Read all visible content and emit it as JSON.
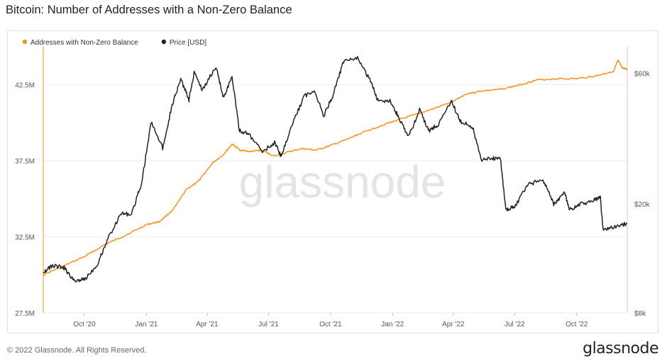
{
  "title": "Bitcoin: Number of Addresses with a Non-Zero Balance",
  "footer": "© 2022 Glassnode. All Rights Reserved.",
  "brand": "glassnode",
  "watermark": "glassnode",
  "colors": {
    "addresses": "#f7931a",
    "price": "#222222",
    "grid": "#ececec",
    "watermark": "#e4e4e4"
  },
  "chart_data": {
    "type": "line",
    "title": "Bitcoin: Number of Addresses with a Non-Zero Balance",
    "legend": [
      "Addresses with Non-Zero Balance",
      "Price [USD]"
    ],
    "x_range": [
      "2020-08-01",
      "2022-12-15"
    ],
    "x_ticks": [
      {
        "label": "Oct '20",
        "date": "2020-10-01"
      },
      {
        "label": "Jan '21",
        "date": "2021-01-01"
      },
      {
        "label": "Apr '21",
        "date": "2021-04-01"
      },
      {
        "label": "Jul '21",
        "date": "2021-07-01"
      },
      {
        "label": "Oct '21",
        "date": "2021-10-01"
      },
      {
        "label": "Jan '22",
        "date": "2022-01-01"
      },
      {
        "label": "Apr '22",
        "date": "2022-04-01"
      },
      {
        "label": "Jul '22",
        "date": "2022-07-01"
      },
      {
        "label": "Oct '22",
        "date": "2022-10-01"
      }
    ],
    "y_left": {
      "ylim": [
        27.5,
        45
      ],
      "ticks": [
        {
          "label": "27.5M",
          "value": 27.5
        },
        {
          "label": "32.5M",
          "value": 32.5
        },
        {
          "label": "37.5M",
          "value": 37.5
        },
        {
          "label": "42.5M",
          "value": 42.5
        }
      ]
    },
    "y_right": {
      "scale": "log",
      "ylim": [
        8000,
        75000
      ],
      "ticks": [
        {
          "label": "$8k",
          "value": 8000
        },
        {
          "label": "$20k",
          "value": 20000
        },
        {
          "label": "$60k",
          "value": 60000
        }
      ]
    },
    "series": [
      {
        "name": "Addresses with Non-Zero Balance",
        "axis": "left",
        "points": [
          [
            "2020-08-01",
            30.0
          ],
          [
            "2020-09-01",
            30.6
          ],
          [
            "2020-10-01",
            31.2
          ],
          [
            "2020-11-01",
            32.0
          ],
          [
            "2020-12-01",
            32.6
          ],
          [
            "2021-01-01",
            33.3
          ],
          [
            "2021-01-20",
            33.5
          ],
          [
            "2021-02-10",
            34.3
          ],
          [
            "2021-03-01",
            35.6
          ],
          [
            "2021-03-20",
            36.2
          ],
          [
            "2021-04-10",
            37.4
          ],
          [
            "2021-04-25",
            37.9
          ],
          [
            "2021-05-08",
            38.6
          ],
          [
            "2021-05-20",
            38.2
          ],
          [
            "2021-06-05",
            38.1
          ],
          [
            "2021-06-20",
            38.2
          ],
          [
            "2021-07-10",
            37.8
          ],
          [
            "2021-08-01",
            38.1
          ],
          [
            "2021-08-20",
            38.3
          ],
          [
            "2021-09-10",
            38.2
          ],
          [
            "2021-10-01",
            38.5
          ],
          [
            "2021-10-25",
            38.9
          ],
          [
            "2021-11-20",
            39.4
          ],
          [
            "2021-12-20",
            39.9
          ],
          [
            "2022-01-10",
            40.2
          ],
          [
            "2022-02-01",
            40.5
          ],
          [
            "2022-03-01",
            40.9
          ],
          [
            "2022-04-01",
            41.4
          ],
          [
            "2022-04-20",
            41.9
          ],
          [
            "2022-05-15",
            42.1
          ],
          [
            "2022-06-10",
            42.2
          ],
          [
            "2022-07-10",
            42.5
          ],
          [
            "2022-08-01",
            42.8
          ],
          [
            "2022-09-01",
            42.9
          ],
          [
            "2022-10-01",
            42.9
          ],
          [
            "2022-11-01",
            43.1
          ],
          [
            "2022-11-25",
            43.4
          ],
          [
            "2022-12-01",
            44.1
          ],
          [
            "2022-12-08",
            43.6
          ],
          [
            "2022-12-15",
            43.5
          ]
        ]
      },
      {
        "name": "Price [USD]",
        "axis": "right",
        "points": [
          [
            "2020-08-01",
            11300
          ],
          [
            "2020-08-15",
            11900
          ],
          [
            "2020-09-01",
            11700
          ],
          [
            "2020-09-15",
            10500
          ],
          [
            "2020-10-01",
            10600
          ],
          [
            "2020-10-20",
            12000
          ],
          [
            "2020-11-05",
            15000
          ],
          [
            "2020-11-25",
            18500
          ],
          [
            "2020-12-10",
            18300
          ],
          [
            "2020-12-25",
            24000
          ],
          [
            "2021-01-08",
            40000
          ],
          [
            "2021-01-25",
            32000
          ],
          [
            "2021-02-08",
            46000
          ],
          [
            "2021-02-21",
            57000
          ],
          [
            "2021-03-05",
            48000
          ],
          [
            "2021-03-13",
            61000
          ],
          [
            "2021-03-25",
            52000
          ],
          [
            "2021-04-14",
            63500
          ],
          [
            "2021-04-25",
            49000
          ],
          [
            "2021-05-08",
            58000
          ],
          [
            "2021-05-19",
            37000
          ],
          [
            "2021-06-01",
            36000
          ],
          [
            "2021-06-22",
            31000
          ],
          [
            "2021-07-10",
            33500
          ],
          [
            "2021-07-20",
            29800
          ],
          [
            "2021-08-05",
            39000
          ],
          [
            "2021-08-23",
            49500
          ],
          [
            "2021-09-07",
            52000
          ],
          [
            "2021-09-21",
            42000
          ],
          [
            "2021-10-05",
            50000
          ],
          [
            "2021-10-20",
            66000
          ],
          [
            "2021-11-10",
            68000
          ],
          [
            "2021-11-28",
            57000
          ],
          [
            "2021-12-10",
            48000
          ],
          [
            "2021-12-28",
            47500
          ],
          [
            "2022-01-10",
            41500
          ],
          [
            "2022-01-24",
            35000
          ],
          [
            "2022-02-10",
            44000
          ],
          [
            "2022-02-24",
            37000
          ],
          [
            "2022-03-10",
            39000
          ],
          [
            "2022-03-29",
            47500
          ],
          [
            "2022-04-12",
            40000
          ],
          [
            "2022-04-30",
            38000
          ],
          [
            "2022-05-12",
            29000
          ],
          [
            "2022-05-25",
            29500
          ],
          [
            "2022-06-10",
            29000
          ],
          [
            "2022-06-18",
            19000
          ],
          [
            "2022-07-01",
            19500
          ],
          [
            "2022-07-20",
            23500
          ],
          [
            "2022-08-12",
            24500
          ],
          [
            "2022-08-28",
            20000
          ],
          [
            "2022-09-13",
            22000
          ],
          [
            "2022-09-20",
            19000
          ],
          [
            "2022-10-05",
            20000
          ],
          [
            "2022-10-25",
            20500
          ],
          [
            "2022-11-05",
            21300
          ],
          [
            "2022-11-09",
            16000
          ],
          [
            "2022-11-25",
            16500
          ],
          [
            "2022-12-15",
            17000
          ]
        ]
      }
    ]
  }
}
